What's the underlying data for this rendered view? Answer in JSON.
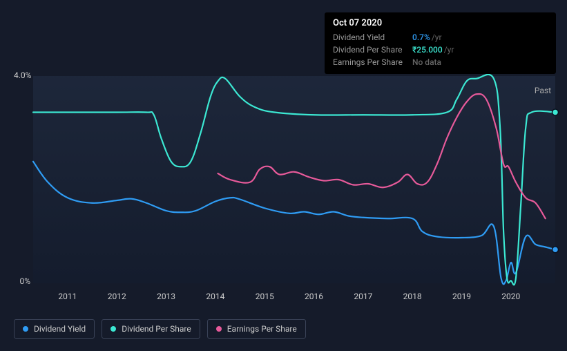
{
  "tooltip": {
    "date": "Oct 07 2020",
    "rows": [
      {
        "label": "Dividend Yield",
        "value": "0.7%",
        "unit": "/yr",
        "color": "#2f9cf4"
      },
      {
        "label": "Dividend Per Share",
        "value": "₹25.000",
        "unit": "/yr",
        "color": "#3ce8d3"
      },
      {
        "label": "Earnings Per Share",
        "value": "No data",
        "unit": "",
        "color": "#666"
      }
    ]
  },
  "chart": {
    "background_color": "#151b2a",
    "plot_bg_top": "#1e283c",
    "plot_bg_bottom": "#141c2d",
    "y_axis": {
      "min": 0,
      "max": 4.0,
      "ticks": [
        {
          "v": 0,
          "label": "0%"
        },
        {
          "v": 4.0,
          "label": "4.0%"
        }
      ],
      "label_color": "#ccc",
      "fontsize": 12
    },
    "x_axis": {
      "min": 2010.3,
      "max": 2020.9,
      "ticks": [
        2011,
        2012,
        2013,
        2014,
        2015,
        2016,
        2017,
        2018,
        2019,
        2020
      ],
      "label_color": "#ccc",
      "fontsize": 12
    },
    "past_label": "Past",
    "line_width": 2.2,
    "series": [
      {
        "key": "dividend_yield",
        "label": "Dividend Yield",
        "color": "#2f9cf4",
        "end_dot": true,
        "end_dot_y": 0.65,
        "points": [
          [
            2010.3,
            2.35
          ],
          [
            2010.6,
            1.95
          ],
          [
            2011.0,
            1.65
          ],
          [
            2011.5,
            1.55
          ],
          [
            2012.0,
            1.6
          ],
          [
            2012.3,
            1.63
          ],
          [
            2012.6,
            1.55
          ],
          [
            2013.0,
            1.4
          ],
          [
            2013.3,
            1.37
          ],
          [
            2013.6,
            1.4
          ],
          [
            2014.0,
            1.58
          ],
          [
            2014.3,
            1.65
          ],
          [
            2014.5,
            1.62
          ],
          [
            2015.0,
            1.45
          ],
          [
            2015.5,
            1.35
          ],
          [
            2015.8,
            1.38
          ],
          [
            2016.1,
            1.33
          ],
          [
            2016.4,
            1.38
          ],
          [
            2016.7,
            1.3
          ],
          [
            2017.0,
            1.27
          ],
          [
            2017.5,
            1.25
          ],
          [
            2018.0,
            1.25
          ],
          [
            2018.2,
            1.0
          ],
          [
            2018.5,
            0.9
          ],
          [
            2019.0,
            0.88
          ],
          [
            2019.4,
            0.92
          ],
          [
            2019.65,
            1.1
          ],
          [
            2019.8,
            0.1
          ],
          [
            2019.9,
            0.05
          ],
          [
            2020.0,
            0.4
          ],
          [
            2020.1,
            0.2
          ],
          [
            2020.3,
            0.9
          ],
          [
            2020.5,
            0.75
          ],
          [
            2020.7,
            0.7
          ],
          [
            2020.9,
            0.65
          ]
        ]
      },
      {
        "key": "dividend_per_share",
        "label": "Dividend Per Share",
        "color": "#3ce8d3",
        "end_dot": true,
        "end_dot_y": 3.3,
        "points": [
          [
            2010.3,
            3.3
          ],
          [
            2011.0,
            3.3
          ],
          [
            2012.0,
            3.3
          ],
          [
            2012.6,
            3.3
          ],
          [
            2012.75,
            3.25
          ],
          [
            2012.9,
            2.8
          ],
          [
            2013.1,
            2.35
          ],
          [
            2013.3,
            2.25
          ],
          [
            2013.5,
            2.35
          ],
          [
            2013.7,
            2.9
          ],
          [
            2013.9,
            3.6
          ],
          [
            2014.05,
            3.9
          ],
          [
            2014.2,
            3.95
          ],
          [
            2014.5,
            3.6
          ],
          [
            2014.8,
            3.4
          ],
          [
            2015.2,
            3.3
          ],
          [
            2016.0,
            3.25
          ],
          [
            2017.0,
            3.25
          ],
          [
            2018.0,
            3.25
          ],
          [
            2018.7,
            3.3
          ],
          [
            2018.9,
            3.55
          ],
          [
            2019.1,
            3.9
          ],
          [
            2019.3,
            3.95
          ],
          [
            2019.65,
            3.95
          ],
          [
            2019.78,
            3.0
          ],
          [
            2019.85,
            1.0
          ],
          [
            2019.92,
            0.1
          ],
          [
            2020.0,
            0.05
          ],
          [
            2020.1,
            0.1
          ],
          [
            2020.2,
            1.5
          ],
          [
            2020.3,
            3.0
          ],
          [
            2020.42,
            3.3
          ],
          [
            2020.9,
            3.3
          ]
        ]
      },
      {
        "key": "earnings_per_share",
        "label": "Earnings Per Share",
        "color": "#e75a9a",
        "end_dot": false,
        "points": [
          [
            2014.05,
            2.12
          ],
          [
            2014.3,
            2.0
          ],
          [
            2014.7,
            1.95
          ],
          [
            2014.9,
            2.2
          ],
          [
            2015.1,
            2.25
          ],
          [
            2015.3,
            2.1
          ],
          [
            2015.6,
            2.15
          ],
          [
            2015.9,
            2.05
          ],
          [
            2016.2,
            1.98
          ],
          [
            2016.5,
            2.0
          ],
          [
            2016.8,
            1.9
          ],
          [
            2017.1,
            1.92
          ],
          [
            2017.4,
            1.85
          ],
          [
            2017.7,
            1.95
          ],
          [
            2017.9,
            2.1
          ],
          [
            2018.1,
            1.92
          ],
          [
            2018.3,
            1.95
          ],
          [
            2018.5,
            2.3
          ],
          [
            2018.7,
            2.8
          ],
          [
            2018.9,
            3.2
          ],
          [
            2019.1,
            3.5
          ],
          [
            2019.3,
            3.65
          ],
          [
            2019.5,
            3.55
          ],
          [
            2019.7,
            3.0
          ],
          [
            2019.85,
            2.3
          ],
          [
            2019.95,
            2.25
          ],
          [
            2020.1,
            1.95
          ],
          [
            2020.3,
            1.65
          ],
          [
            2020.5,
            1.55
          ],
          [
            2020.7,
            1.25
          ]
        ]
      }
    ]
  },
  "legend": {
    "border_color": "#3a4358",
    "text_color": "#ccc",
    "fontsize": 12,
    "items": [
      {
        "label": "Dividend Yield",
        "color": "#2f9cf4"
      },
      {
        "label": "Dividend Per Share",
        "color": "#3ce8d3"
      },
      {
        "label": "Earnings Per Share",
        "color": "#e75a9a"
      }
    ]
  }
}
